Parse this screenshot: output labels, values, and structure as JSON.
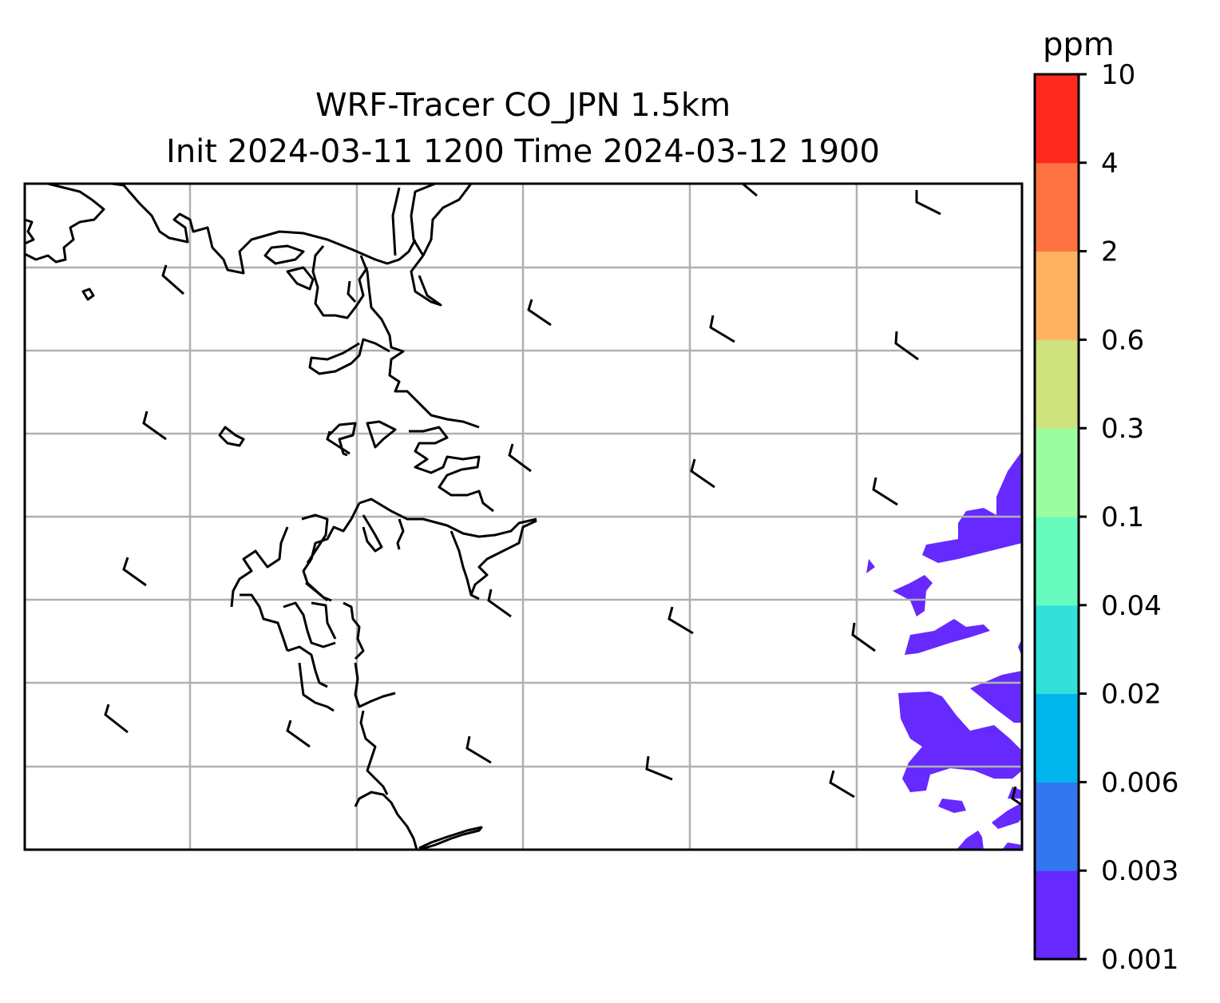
{
  "map": {
    "title": "WRF-Tracer CO_JPN 1.5km",
    "subtitle": "Init 2024-03-11 1200 Time 2024-03-12 1900",
    "grid": true
  },
  "colorbar": {
    "unit": "ppm",
    "levels": [
      "0.001",
      "0.003",
      "0.006",
      "0.02",
      "0.04",
      "0.1",
      "0.3",
      "0.6",
      "2",
      "4",
      "10"
    ],
    "colors": [
      "#6629fe",
      "#3476f0",
      "#00b5eb",
      "#33e1d9",
      "#66fbbe",
      "#9bfd9f",
      "#cee27e",
      "#ffb361",
      "#ff7342",
      "#fe2a1f"
    ]
  },
  "chart_data": {
    "type": "map",
    "field": "CO tracer concentration",
    "unit": "ppm",
    "contour_levels": [
      0.001,
      0.003,
      0.006,
      0.02,
      0.04,
      0.1,
      0.3,
      0.6,
      2,
      4,
      10
    ],
    "visible_concentration_band": [
      0.001,
      0.003
    ]
  }
}
